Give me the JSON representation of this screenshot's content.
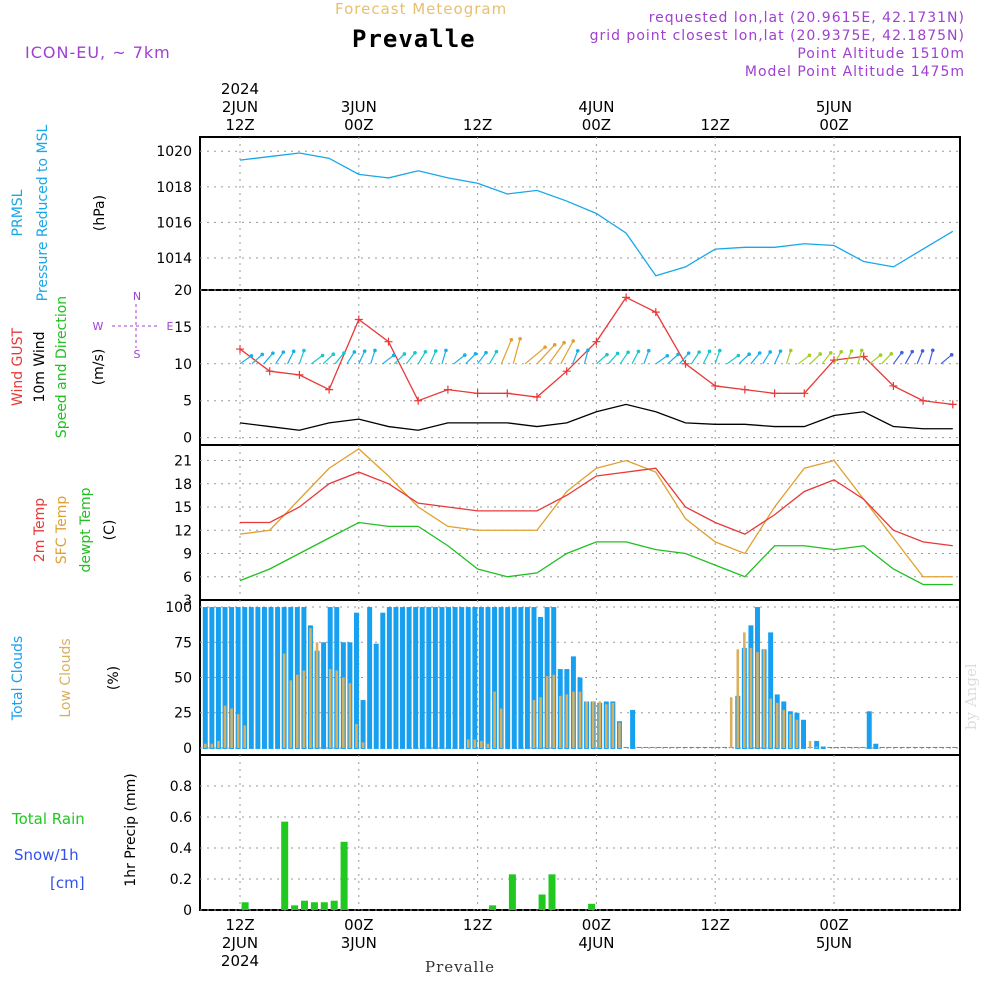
{
  "header": {
    "subtitle": "Forecast Meteogram",
    "title": "Prevalle",
    "model": "ICON-EU, ~ 7km",
    "requested": "requested lon,lat (20.9615E, 42.1731N)",
    "grid": "grid point closest lon,lat (20.9375E, 42.1875N)",
    "altitude": "Point Altitude 1510m",
    "model_altitude": "Model Point Altitude 1475m"
  },
  "footer": {
    "station": "Prevalle",
    "credit": "by Angel"
  },
  "colors": {
    "pressure": "#18a8e8",
    "gust": "#e83838",
    "wind": "#000000",
    "green": "#20c020",
    "t2m": "#e83838",
    "sfc": "#e0a030",
    "dew": "#20c020",
    "total_cloud": "#18a0f0",
    "low_cloud": "#d8b060",
    "rain": "#20c820",
    "snow": "#3050f0",
    "grid": "#9a9a9a"
  },
  "chart_data": [
    {
      "type": "line",
      "panel": "pressure",
      "ylabel_lines": [
        "PRMSL",
        "Pressure Reduced to MSL",
        "(hPa)"
      ],
      "ylim": [
        1012.2,
        1020.8
      ],
      "yticks": [
        1014,
        1016,
        1018,
        1020
      ],
      "x_hours": [
        0,
        3,
        6,
        9,
        12,
        15,
        18,
        21,
        24,
        27,
        30,
        33,
        36,
        39,
        42,
        45,
        48,
        51,
        54,
        57,
        60,
        63,
        66,
        69,
        72
      ],
      "series": [
        {
          "name": "PRMSL",
          "values": [
            1019.5,
            1019.7,
            1019.9,
            1019.6,
            1018.7,
            1018.5,
            1018.9,
            1018.5,
            1018.2,
            1017.6,
            1017.8,
            1017.2,
            1016.5,
            1015.4,
            1013.0,
            1013.5,
            1014.5,
            1014.6,
            1014.6,
            1014.8,
            1014.7,
            1013.8,
            1013.5,
            1014.5,
            1015.5
          ]
        }
      ]
    },
    {
      "type": "line",
      "panel": "wind",
      "ylabel_lines": [
        "Wind GUST",
        "10m Wind",
        "Speed and Direction",
        "(m/s)"
      ],
      "ylim": [
        -1,
        20
      ],
      "yticks": [
        0,
        5,
        10,
        15,
        20
      ],
      "x_hours": [
        0,
        3,
        6,
        9,
        12,
        15,
        18,
        21,
        24,
        27,
        30,
        33,
        36,
        39,
        42,
        45,
        48,
        51,
        54,
        57,
        60,
        63,
        66,
        69,
        72
      ],
      "series": [
        {
          "name": "Wind GUST",
          "values": [
            12,
            9,
            8.5,
            6.5,
            16,
            13,
            5,
            6.5,
            6,
            6,
            5.5,
            9,
            13,
            19,
            17,
            10,
            7,
            6.5,
            6,
            6,
            10.5,
            11,
            7,
            5,
            4.5
          ]
        },
        {
          "name": "10m Wind",
          "values": [
            2,
            1.5,
            1,
            2,
            2.5,
            1.5,
            1,
            2,
            2,
            2,
            1.5,
            2,
            3.5,
            4.5,
            3.5,
            2,
            1.8,
            1.8,
            1.5,
            1.5,
            3,
            3.5,
            1.5,
            1.2,
            1.2
          ]
        }
      ],
      "compass": {
        "n": "N",
        "s": "S",
        "e": "E",
        "w": "W"
      }
    },
    {
      "type": "line",
      "panel": "temperature",
      "ylabel_lines": [
        "2m Temp",
        "SFC Temp",
        "dewpt Temp",
        "(C)"
      ],
      "ylim": [
        3,
        23
      ],
      "yticks": [
        3,
        6,
        9,
        12,
        15,
        18,
        21
      ],
      "x_hours": [
        0,
        3,
        6,
        9,
        12,
        15,
        18,
        21,
        24,
        27,
        30,
        33,
        36,
        39,
        42,
        45,
        48,
        51,
        54,
        57,
        60,
        63,
        66,
        69,
        72
      ],
      "series": [
        {
          "name": "2m Temp",
          "values": [
            13,
            13,
            15,
            18,
            19.5,
            18,
            15.5,
            15,
            14.5,
            14.5,
            14.5,
            16.5,
            19,
            19.5,
            20,
            15,
            13,
            11.5,
            14,
            17,
            18.5,
            16,
            12,
            10.5,
            10
          ]
        },
        {
          "name": "SFC Temp",
          "values": [
            11.5,
            12,
            16,
            20,
            22.5,
            19,
            15,
            12.5,
            12,
            12,
            12,
            17,
            20,
            21,
            19.5,
            13.5,
            10.5,
            9,
            15,
            20,
            21,
            16,
            11,
            6,
            6
          ]
        },
        {
          "name": "dewpt Temp",
          "values": [
            5.5,
            7,
            9,
            11,
            13,
            12.5,
            12.5,
            10,
            7,
            6,
            6.5,
            9,
            10.5,
            10.5,
            9.5,
            9,
            7.5,
            6,
            10,
            10,
            9.5,
            10,
            7,
            5,
            5
          ]
        }
      ]
    },
    {
      "type": "bar",
      "panel": "clouds",
      "ylabel_lines": [
        "Total Clouds",
        "Low Clouds",
        "(%)"
      ],
      "ylim": [
        -5,
        105
      ],
      "yticks": [
        0,
        25,
        50,
        75,
        100
      ],
      "series": [
        {
          "name": "Total Clouds",
          "values": [
            100,
            100,
            100,
            100,
            100,
            100,
            100,
            100,
            100,
            100,
            100,
            100,
            100,
            100,
            100,
            100,
            87,
            69,
            75,
            100,
            100,
            75,
            75,
            96,
            34,
            100,
            74,
            96,
            100,
            100,
            100,
            100,
            100,
            100,
            100,
            100,
            100,
            100,
            100,
            100,
            100,
            100,
            100,
            100,
            100,
            100,
            100,
            100,
            100,
            100,
            100,
            93,
            100,
            100,
            56,
            56,
            65,
            50,
            33,
            33,
            32,
            33,
            33,
            19,
            0,
            27,
            0,
            0,
            0,
            0,
            0,
            0,
            0,
            0,
            0,
            0,
            0,
            0,
            0,
            0,
            0,
            37,
            71,
            87,
            100,
            70,
            82,
            38,
            33,
            26,
            25,
            20,
            0,
            5,
            1,
            0,
            0,
            0,
            0,
            0,
            0,
            26,
            3,
            0,
            0,
            0,
            0,
            0,
            0,
            0,
            0,
            0,
            0,
            0,
            0
          ]
        },
        {
          "name": "Low Clouds",
          "values": [
            3,
            3,
            5,
            30,
            28,
            24,
            16,
            0,
            0,
            0,
            0,
            0,
            67,
            48,
            52,
            55,
            85,
            75,
            0,
            56,
            55,
            50,
            46,
            17,
            4,
            0,
            0,
            0,
            0,
            0,
            0,
            0,
            0,
            0,
            0,
            0,
            0,
            0,
            0,
            0,
            6,
            6,
            5,
            3,
            40,
            28,
            0,
            0,
            0,
            0,
            34,
            36,
            51,
            52,
            37,
            38,
            40,
            40,
            33,
            33,
            33,
            31,
            32,
            18,
            0,
            0,
            0,
            0,
            0,
            0,
            0,
            0,
            0,
            0,
            0,
            0,
            0,
            0,
            0,
            0,
            36,
            70,
            82,
            71,
            68,
            70,
            35,
            32,
            27,
            24,
            20,
            0,
            5,
            1,
            0,
            0,
            0,
            0,
            0,
            0,
            0,
            0,
            0,
            0,
            0,
            0,
            0,
            0,
            0,
            0,
            0,
            0,
            0,
            0,
            0
          ]
        }
      ]
    },
    {
      "type": "bar",
      "panel": "precip",
      "ylabel_lines": [
        "1hr Precip (mm)"
      ],
      "side_labels": [
        "Total  Rain",
        "Snow/1h",
        "[cm]"
      ],
      "ylim": [
        0,
        1
      ],
      "yticks": [
        0,
        0.2,
        0.4,
        0.6,
        0.8
      ],
      "ytick_labels": [
        "0",
        "0.2",
        "0.4",
        "0.6",
        "0.8"
      ],
      "series": [
        {
          "name": "Total Rain",
          "bars": [
            [
              4,
              0.05
            ],
            [
              8,
              0.57
            ],
            [
              9,
              0.03
            ],
            [
              10,
              0.06
            ],
            [
              11,
              0.05
            ],
            [
              12,
              0.05
            ],
            [
              13,
              0.06
            ],
            [
              14,
              0.44
            ],
            [
              29,
              0.03
            ],
            [
              31,
              0.23
            ],
            [
              34,
              0.1
            ],
            [
              35,
              0.23
            ],
            [
              39,
              0.04
            ]
          ]
        }
      ]
    }
  ],
  "time_axis": {
    "top_labels": [
      {
        "hour": 0,
        "lines": [
          "2024",
          "2JUN",
          "12Z"
        ]
      },
      {
        "hour": 12,
        "lines": [
          "3JUN",
          "00Z"
        ]
      },
      {
        "hour": 24,
        "lines": [
          "12Z"
        ]
      },
      {
        "hour": 36,
        "lines": [
          "4JUN",
          "00Z"
        ]
      },
      {
        "hour": 48,
        "lines": [
          "12Z"
        ]
      },
      {
        "hour": 60,
        "lines": [
          "5JUN",
          "00Z"
        ]
      }
    ],
    "bottom_labels": [
      {
        "hour": 0,
        "lines": [
          "12Z",
          "2JUN",
          "2024"
        ]
      },
      {
        "hour": 12,
        "lines": [
          "00Z",
          "3JUN"
        ]
      },
      {
        "hour": 24,
        "lines": [
          "12Z"
        ]
      },
      {
        "hour": 36,
        "lines": [
          "00Z",
          "4JUN"
        ]
      },
      {
        "hour": 48,
        "lines": [
          "12Z"
        ]
      },
      {
        "hour": 60,
        "lines": [
          "00Z",
          "5JUN"
        ]
      }
    ]
  }
}
